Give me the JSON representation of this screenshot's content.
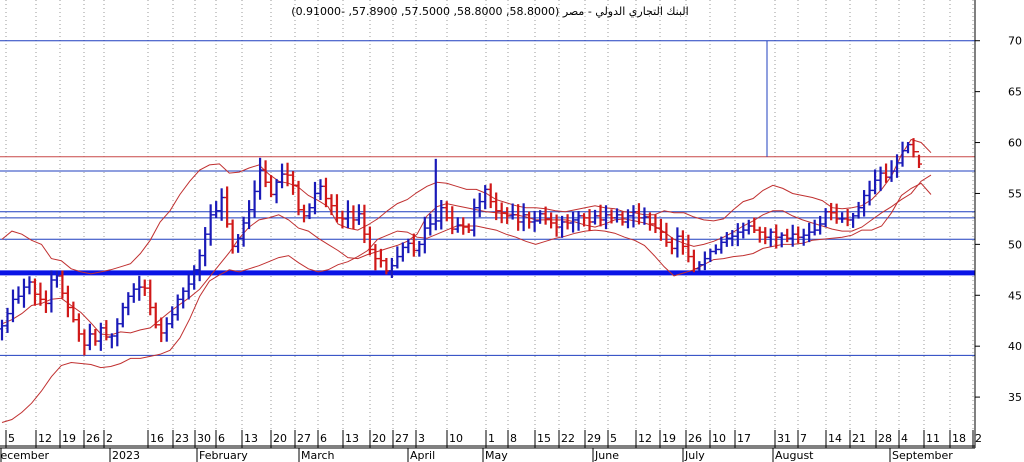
{
  "chart_data": {
    "type": "ohlc",
    "title": "البنك التجاري الدولي - مصر (58.8000, 58.8000, 57.5000, 57.8900, -0.91000)",
    "xlabel": "",
    "ylabel": "",
    "ylim": [
      30,
      74
    ],
    "grid": true,
    "legend": "none",
    "y_ticks": [
      35,
      40,
      45,
      50,
      55,
      60,
      65,
      70
    ],
    "x_day_ticks": [
      "5",
      "12",
      "19",
      "26",
      "2",
      "16",
      "23",
      "30",
      "6",
      "13",
      "20",
      "27",
      "6",
      "13",
      "20",
      "27",
      "3",
      "10",
      "1",
      "8",
      "15",
      "22",
      "29",
      "5",
      "12",
      "19",
      "26",
      "10",
      "17",
      "31",
      "7",
      "14",
      "21",
      "28",
      "4",
      "11",
      "18",
      "2"
    ],
    "x_month_labels": [
      "December",
      "2023",
      "February",
      "March",
      "April",
      "May",
      "June",
      "July",
      "August",
      "September"
    ],
    "horizontal_lines": [
      {
        "value": 70.0,
        "color": "#1f3fbf"
      },
      {
        "value": 58.6,
        "color": "#c84848"
      },
      {
        "value": 57.2,
        "color": "#1f3fbf"
      },
      {
        "value": 53.2,
        "color": "#1f3fbf"
      },
      {
        "value": 52.6,
        "color": "#1f3fbf"
      },
      {
        "value": 50.5,
        "color": "#1f3fbf"
      },
      {
        "value": 47.2,
        "color": "#0a14e6",
        "thick": true
      },
      {
        "value": 39.1,
        "color": "#1f3fbf"
      }
    ],
    "colors": {
      "up": "#1a1ab8",
      "down": "#d01818",
      "band": "#c03030",
      "grid": "#9a9a9a",
      "support": "#0a14e6"
    },
    "series": [
      {
        "values": [
          42.0,
          43.2,
          44.6,
          44.9,
          45.8,
          46.3,
          45.1,
          44.6,
          44.2,
          46.5,
          46.9,
          45.2,
          43.8,
          42.6,
          41.2,
          40.1,
          41.2,
          40.5,
          41.8,
          40.9,
          41.0,
          42.2,
          43.8,
          44.9,
          45.6,
          45.8,
          45.7,
          43.8,
          42.1,
          41.3,
          42.2,
          43.1,
          44.6,
          45.4,
          46.1,
          47.5,
          48.9,
          51.0,
          52.9,
          53.3,
          54.6,
          52.0,
          49.8,
          50.6,
          52.1,
          53.4,
          55.2,
          57.3,
          56.1,
          54.9,
          56.1,
          56.9,
          56.8,
          55.8,
          53.4,
          52.8,
          53.6,
          55.0,
          55.7,
          54.5,
          53.8,
          52.6,
          52.5,
          53.2,
          52.4,
          53.0,
          51.0,
          49.5,
          48.6,
          48.4,
          47.4,
          47.9,
          48.8,
          49.7,
          50.1,
          49.4,
          50.0,
          51.6,
          52.0,
          52.3,
          53.6,
          52.6,
          51.5,
          51.9,
          51.7,
          51.4,
          53.6,
          54.2,
          55.4,
          54.2,
          53.3,
          53.1,
          52.8,
          52.9,
          52.2,
          52.9,
          52.2,
          52.3,
          53.0,
          52.5,
          52.1,
          51.7,
          52.2,
          52.1,
          52.4,
          52.8,
          52.6,
          52.2,
          52.8,
          52.4,
          52.9,
          52.6,
          52.9,
          52.2,
          52.8,
          53.2,
          52.6,
          52.7,
          52.0,
          51.6,
          51.2,
          50.2,
          49.6,
          50.8,
          49.8,
          48.8,
          47.6,
          48.0,
          48.6,
          49.3,
          49.5,
          50.2,
          50.6,
          50.8,
          51.2,
          51.4,
          51.8,
          51.4,
          51.2,
          50.7,
          51.2,
          50.7,
          50.9,
          50.6,
          51.0,
          50.7,
          50.9,
          51.2,
          51.4,
          52.0,
          53.2,
          53.1,
          52.5,
          52.5,
          52.4,
          52.8,
          53.6,
          54.8,
          55.3,
          56.3,
          57.0,
          56.6,
          57.2,
          58.0,
          59.2,
          59.8,
          59.1,
          57.89
        ]
      },
      {
        "name": "upper-band",
        "values": [
          50.5,
          51.3,
          51.0,
          50.4,
          50.0,
          48.6,
          48.4,
          47.6,
          47.3,
          47.1,
          47.3,
          47.5,
          47.8,
          48.1,
          49.1,
          50.4,
          52.2,
          53.3,
          54.9,
          56.2,
          57.3,
          57.8,
          57.9,
          57.0,
          57.1,
          57.5,
          57.8,
          56.9,
          56.2,
          56.0,
          55.6,
          54.8,
          54.3,
          53.7,
          52.0,
          51.6,
          51.4,
          51.9,
          52.5,
          53.3,
          54.0,
          54.4,
          55.1,
          55.7,
          56.1,
          56.0,
          55.7,
          55.4,
          55.4,
          55.0,
          54.4,
          54.1,
          53.8,
          53.6,
          53.6,
          53.5,
          53.3,
          53.2,
          53.4,
          53.6,
          53.8,
          53.6,
          53.5,
          53.2,
          53.1,
          52.9,
          52.9,
          53.3,
          53.1,
          53.1,
          52.7,
          52.4,
          52.3,
          52.5,
          53.4,
          54.2,
          54.5,
          55.3,
          55.8,
          55.5,
          55.0,
          54.8,
          54.6,
          54.3,
          53.6,
          53.5,
          53.6,
          53.8,
          54.4,
          55.4,
          56.7,
          58.8,
          60.3,
          60.0,
          59.0
        ]
      },
      {
        "name": "middle-band",
        "values": [
          42.2,
          42.6,
          43.2,
          44.0,
          44.2,
          44.6,
          44.7,
          44.0,
          43.3,
          42.3,
          41.2,
          41.1,
          41.4,
          41.3,
          41.6,
          41.8,
          42.6,
          43.4,
          44.1,
          44.8,
          45.6,
          46.8,
          48.0,
          49.2,
          50.6,
          51.7,
          52.4,
          52.6,
          52.9,
          52.4,
          51.6,
          51.3,
          50.6,
          50.0,
          49.4,
          48.7,
          48.6,
          49.0,
          49.3,
          49.6,
          49.9,
          50.3,
          51.0,
          52.8,
          53.7,
          54.0,
          53.8,
          53.6,
          53.4,
          53.2,
          53.1,
          53.0,
          52.9,
          52.7,
          52.4,
          52.4,
          52.4,
          52.4,
          52.2,
          51.9,
          51.7,
          52.0,
          52.4,
          52.5,
          52.3,
          52.1,
          51.8,
          51.2,
          50.5,
          50.1,
          49.8,
          50.0,
          50.3,
          50.7,
          51.2,
          51.8,
          52.3,
          52.9,
          53.3,
          53.3,
          52.8,
          52.4,
          52.1,
          51.8,
          51.5,
          51.3,
          51.3,
          51.7,
          52.4,
          53.1,
          53.7,
          54.4,
          55.0,
          56.2,
          56.8
        ]
      },
      {
        "name": "lower-band",
        "values": [
          32.5,
          32.8,
          33.5,
          34.4,
          35.6,
          37.0,
          38.1,
          38.4,
          38.3,
          38.2,
          37.9,
          38.0,
          38.3,
          38.8,
          38.8,
          39.0,
          39.2,
          39.6,
          40.8,
          42.7,
          44.9,
          46.4,
          47.0,
          47.5,
          47.3,
          47.6,
          47.9,
          48.3,
          48.7,
          48.9,
          48.2,
          47.6,
          47.3,
          47.5,
          48.0,
          48.3,
          48.8,
          49.4,
          50.5,
          50.9,
          51.3,
          51.2,
          50.7,
          50.6,
          51.0,
          51.4,
          51.8,
          51.8,
          51.8,
          51.6,
          51.4,
          51.0,
          50.7,
          50.3,
          50.0,
          50.3,
          50.6,
          50.8,
          51.1,
          51.3,
          51.4,
          51.3,
          51.1,
          50.7,
          50.4,
          49.9,
          48.9,
          47.8,
          46.9,
          47.2,
          47.5,
          48.0,
          48.5,
          48.6,
          48.8,
          48.9,
          49.1,
          49.6,
          49.8,
          50.0,
          50.0,
          50.1,
          50.4,
          50.5,
          50.6,
          50.7,
          50.9,
          51.4,
          51.4,
          51.8,
          53.1,
          54.8,
          55.5,
          56.0,
          54.9
        ]
      }
    ]
  }
}
